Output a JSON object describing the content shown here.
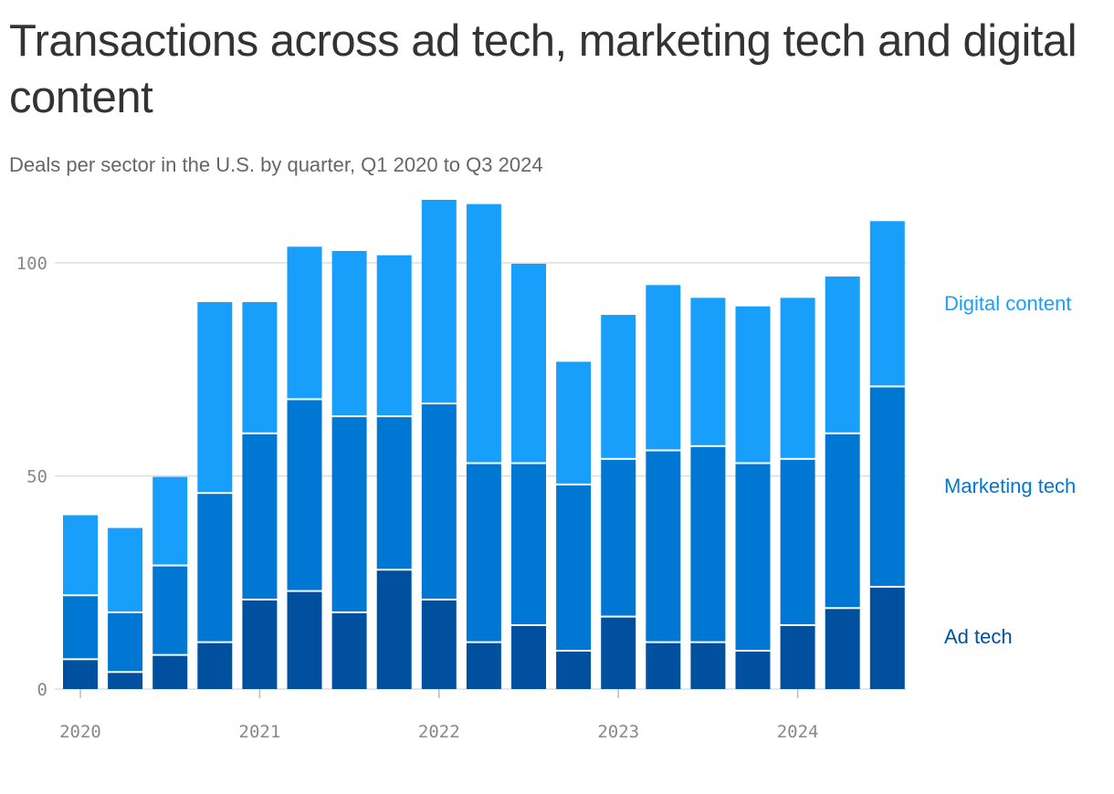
{
  "chart_data": {
    "type": "bar",
    "stacked": true,
    "title": "Transactions across ad tech, marketing tech and digital content",
    "subtitle": "Deals per sector in the U.S. by quarter, Q1 2020 to Q3 2024",
    "categories": [
      "Q1 2020",
      "Q2 2020",
      "Q3 2020",
      "Q4 2020",
      "Q1 2021",
      "Q2 2021",
      "Q3 2021",
      "Q4 2021",
      "Q1 2022",
      "Q2 2022",
      "Q3 2022",
      "Q4 2022",
      "Q1 2023",
      "Q2 2023",
      "Q3 2023",
      "Q4 2023",
      "Q1 2024",
      "Q2 2024",
      "Q3 2024"
    ],
    "x_tick_labels": [
      "2020",
      "2021",
      "2022",
      "2023",
      "2024"
    ],
    "y_ticks": [
      0,
      50,
      100
    ],
    "ylim": [
      0,
      115
    ],
    "grid": true,
    "legend": "right",
    "series": [
      {
        "name": "Ad tech",
        "color": "#0050a0",
        "values": [
          7,
          4,
          8,
          11,
          21,
          23,
          18,
          28,
          21,
          11,
          15,
          9,
          17,
          11,
          11,
          9,
          15,
          19,
          24
        ]
      },
      {
        "name": "Marketing tech",
        "color": "#0077d3",
        "values": [
          15,
          14,
          21,
          35,
          39,
          45,
          46,
          36,
          46,
          42,
          38,
          39,
          37,
          45,
          46,
          44,
          39,
          41,
          47
        ]
      },
      {
        "name": "Digital content",
        "color": "#189ffb",
        "values": [
          19,
          20,
          21,
          45,
          31,
          36,
          39,
          38,
          48,
          61,
          47,
          29,
          34,
          39,
          35,
          37,
          38,
          37,
          39
        ]
      }
    ]
  }
}
